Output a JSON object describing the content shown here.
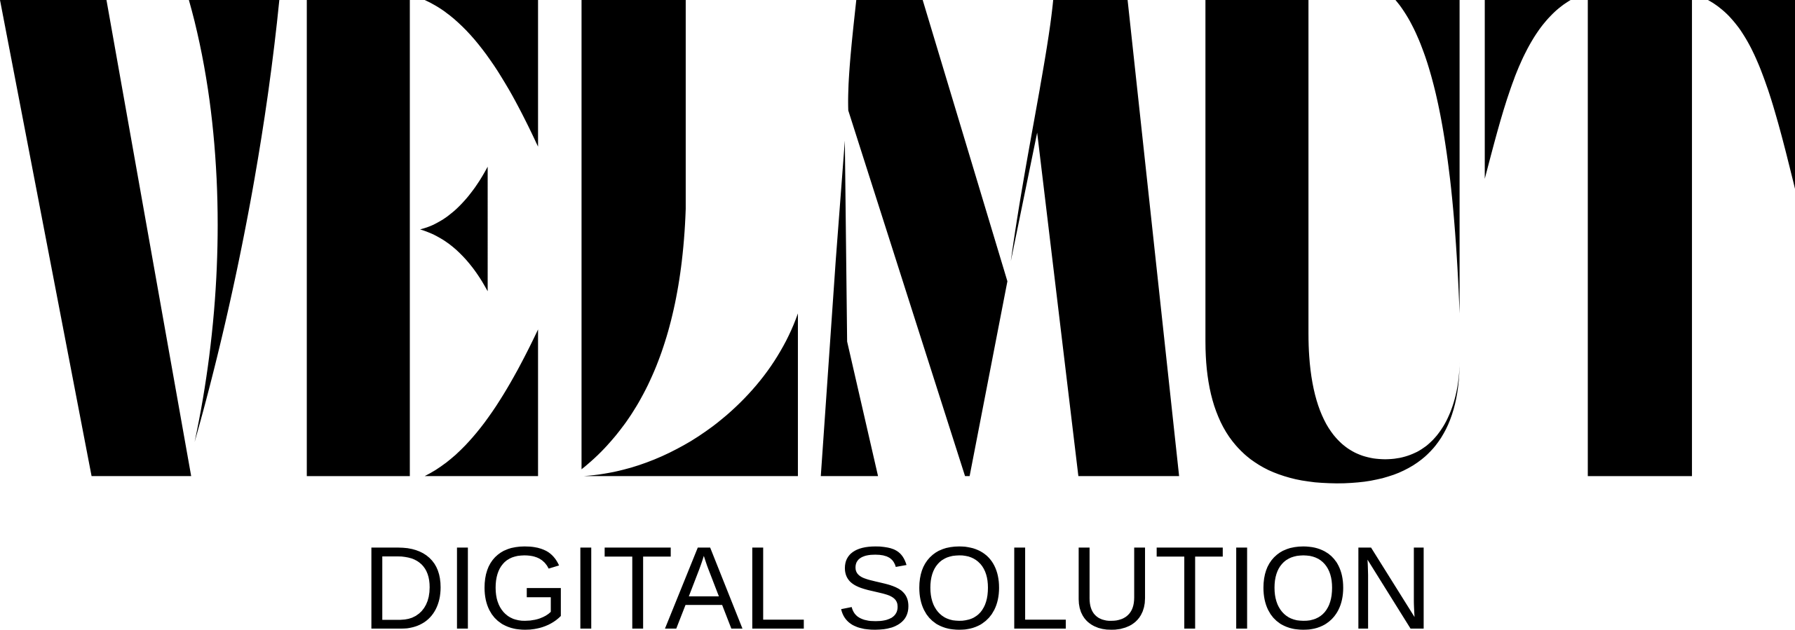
{
  "logo": {
    "wordmark": "VELMUT",
    "tagline": "DIGITAL SOLUTION",
    "color": "#000000",
    "background": "#ffffff"
  }
}
